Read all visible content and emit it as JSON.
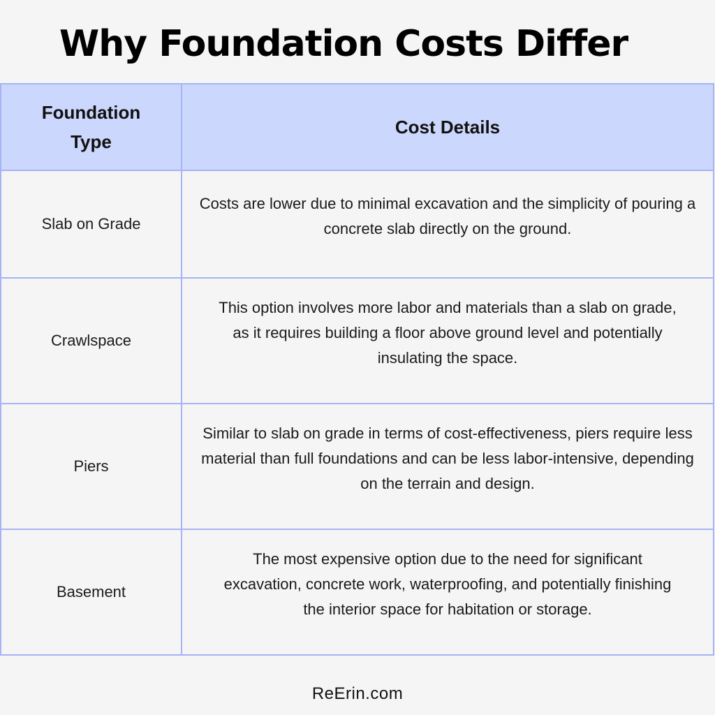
{
  "title": "Why Foundation Costs Differ",
  "table": {
    "headers": {
      "type": "Foundation Type",
      "details": "Cost Details"
    },
    "rows": [
      {
        "type": "Slab on Grade",
        "details": "Costs are lower due to minimal excavation and the simplicity of pouring a concrete slab directly on the ground."
      },
      {
        "type": "Crawlspace",
        "details": "This option involves more labor and materials than a slab on grade, as it requires building a floor above ground level and potentially insulating the space."
      },
      {
        "type": "Piers",
        "details": "Similar to slab on grade in terms of cost-effectiveness, piers require less material than full foundations and can be less labor-intensive, depending on the terrain and design."
      },
      {
        "type": "Basement",
        "details": "The most expensive option due to the need for significant excavation, concrete work, waterproofing, and potentially finishing the interior space for habitation or storage."
      }
    ]
  },
  "footer": "ReErin.com",
  "colors": {
    "header_bg": "#ccd7fd",
    "border": "#a6b4f5",
    "page_bg": "#f5f5f5"
  }
}
